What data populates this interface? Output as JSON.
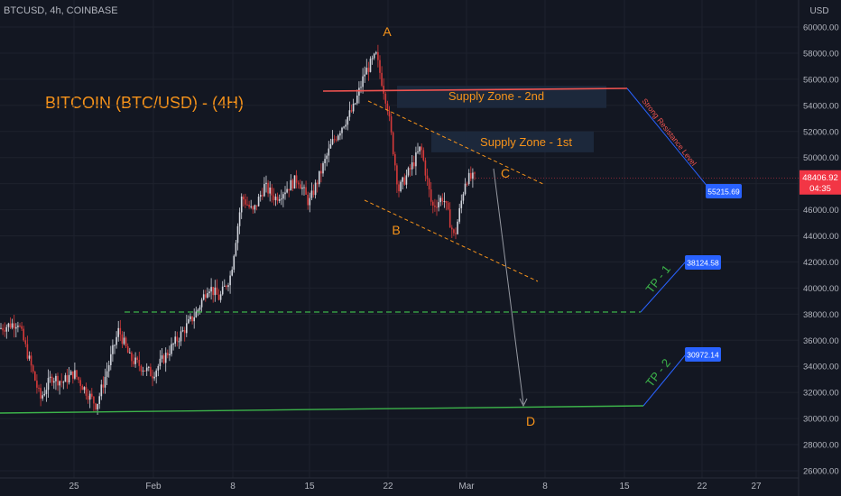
{
  "header": {
    "symbol": "BTCUSD, 4h, COINBASE"
  },
  "main_title": "BITCOIN (BTC/USD) - (4H)",
  "colors": {
    "bg": "#131722",
    "grid": "#1e222d",
    "axis_text": "#b2b5be",
    "up": "#d1d4dc",
    "down": "#d63a3a",
    "orange": "#f7931a",
    "green": "#3cb34a",
    "blue": "#2962ff",
    "red": "#ef5350",
    "zone": "#1e2a3e",
    "gray": "#9598a1"
  },
  "chart_data": {
    "type": "candlestick",
    "y_axis_label": "USD",
    "y_range": [
      26000,
      62000
    ],
    "y_ticks": [
      26000,
      28000,
      30000,
      32000,
      34000,
      36000,
      38000,
      40000,
      42000,
      44000,
      46000,
      48000,
      50000,
      52000,
      54000,
      56000,
      58000,
      60000
    ],
    "x_ticks": [
      "25",
      "Feb",
      "8",
      "15",
      "22",
      "Mar",
      "8",
      "15",
      "22",
      "27"
    ],
    "last_price": "48406.92",
    "countdown": "04:35",
    "price_path": [
      {
        "date": "Jan 18",
        "price": 36800
      },
      {
        "date": "Jan 20",
        "price": 37400
      },
      {
        "date": "Jan 21",
        "price": 34500
      },
      {
        "date": "Jan 22",
        "price": 31500
      },
      {
        "date": "Jan 23",
        "price": 33200
      },
      {
        "date": "Jan 24",
        "price": 32800
      },
      {
        "date": "Jan 25",
        "price": 33500
      },
      {
        "date": "Jan 26",
        "price": 32200
      },
      {
        "date": "Jan 27",
        "price": 31000
      },
      {
        "date": "Jan 28",
        "price": 33800
      },
      {
        "date": "Jan 29",
        "price": 36800
      },
      {
        "date": "Jan 30",
        "price": 34600
      },
      {
        "date": "Feb 1",
        "price": 33400
      },
      {
        "date": "Feb 3",
        "price": 35800
      },
      {
        "date": "Feb 5",
        "price": 38200
      },
      {
        "date": "Feb 6",
        "price": 40200
      },
      {
        "date": "Feb 7",
        "price": 39200
      },
      {
        "date": "Feb 8",
        "price": 41000
      },
      {
        "date": "Feb 9",
        "price": 47000
      },
      {
        "date": "Feb 10",
        "price": 45800
      },
      {
        "date": "Feb 11",
        "price": 47800
      },
      {
        "date": "Feb 12",
        "price": 46900
      },
      {
        "date": "Feb 14",
        "price": 48400
      },
      {
        "date": "Feb 15",
        "price": 46500
      },
      {
        "date": "Feb 17",
        "price": 51000
      },
      {
        "date": "Feb 18",
        "price": 52500
      },
      {
        "date": "Feb 19",
        "price": 53800
      },
      {
        "date": "Feb 20",
        "price": 56500
      },
      {
        "date": "Feb 21",
        "price": 57800
      },
      {
        "date": "Feb 22",
        "price": 54000
      },
      {
        "date": "Feb 23",
        "price": 47500
      },
      {
        "date": "Feb 24",
        "price": 49000
      },
      {
        "date": "Feb 25",
        "price": 50800
      },
      {
        "date": "Feb 26",
        "price": 46200
      },
      {
        "date": "Feb 27",
        "price": 47000
      },
      {
        "date": "Feb 28",
        "price": 43800
      },
      {
        "date": "Mar 1",
        "price": 48400
      }
    ],
    "supply_zones": [
      {
        "label": "Supply Zone - 2nd",
        "from": 53800,
        "to": 55500
      },
      {
        "label": "Supply Zone - 1st",
        "from": 50400,
        "to": 52000
      }
    ],
    "wave_labels": [
      "A",
      "B",
      "C",
      "D"
    ],
    "targets": [
      {
        "label": "TP - 1",
        "price": "38124.58"
      },
      {
        "label": "TP - 2",
        "price": "30972.14"
      }
    ],
    "resistance": {
      "label": "Strong Resistance Level",
      "price": "55215.69"
    }
  }
}
